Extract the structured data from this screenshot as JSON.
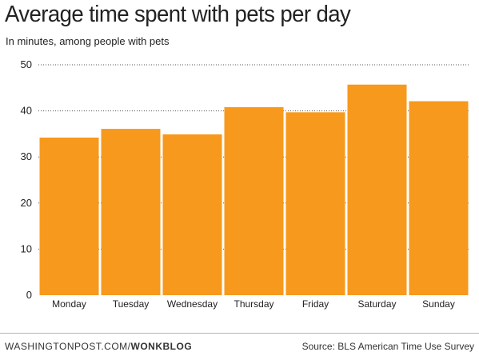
{
  "chart_data": {
    "type": "bar",
    "title": "Average time spent with pets per day",
    "subtitle": "In minutes, among people with pets",
    "categories": [
      "Monday",
      "Tuesday",
      "Wednesday",
      "Thursday",
      "Friday",
      "Saturday",
      "Sunday"
    ],
    "values": [
      34.2,
      36.1,
      34.9,
      40.8,
      39.7,
      45.7,
      42.1
    ],
    "yticks": [
      0,
      10,
      20,
      30,
      40,
      50
    ],
    "ylim": [
      0,
      50
    ],
    "xlabel": "",
    "ylabel": "",
    "grid": "horizontal-dotted",
    "bar_color": "#f7991d"
  },
  "footer": {
    "site": "WASHINGTONPOST.COM/",
    "blog": "WONKBLOG",
    "source": "Source: BLS American Time Use Survey"
  }
}
